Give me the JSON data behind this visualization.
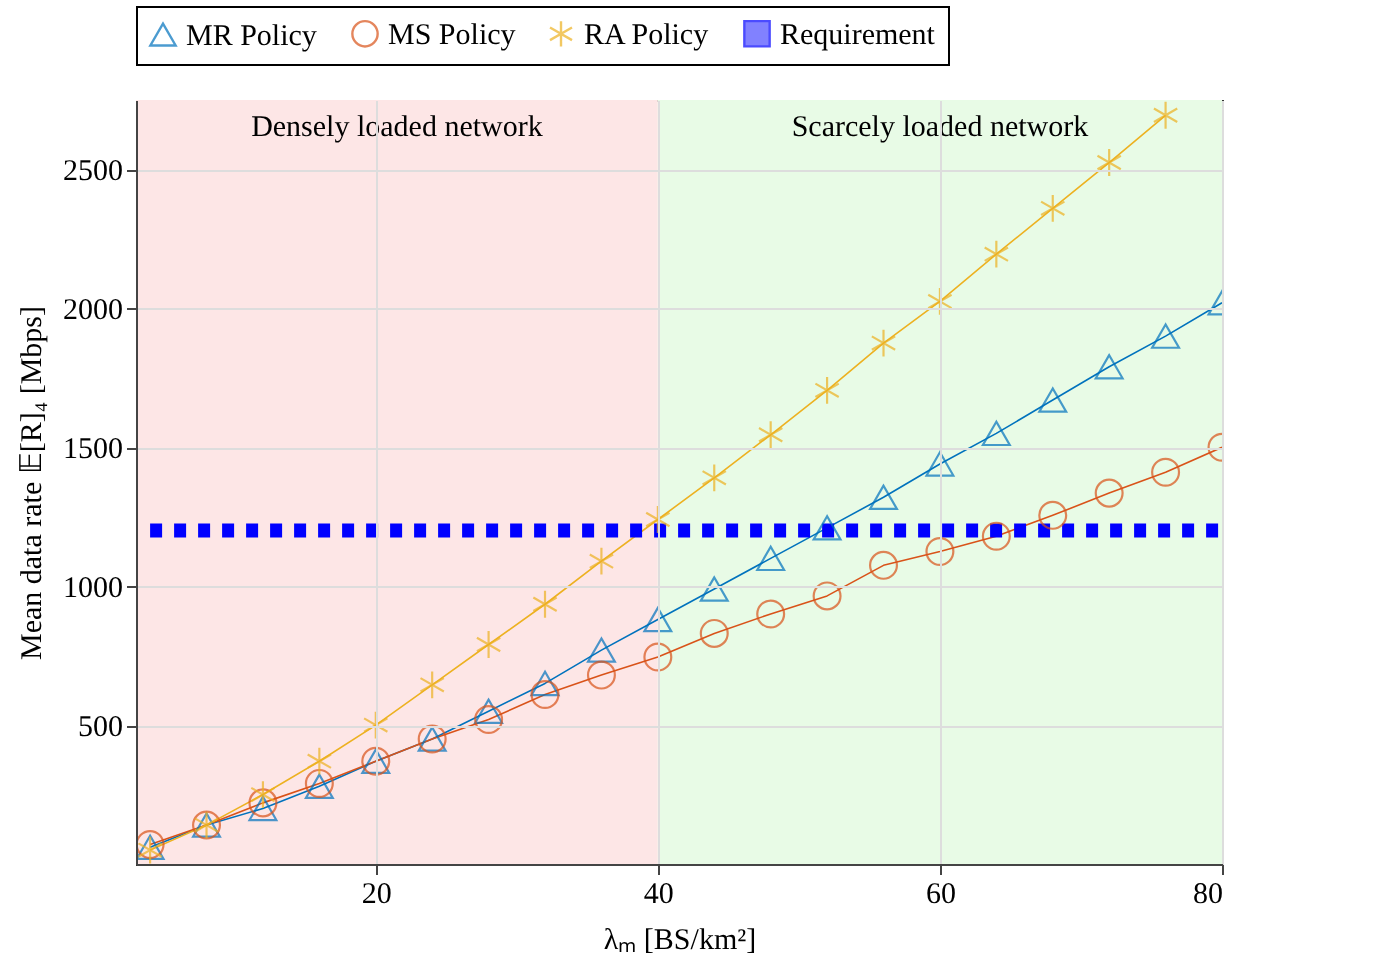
{
  "chart_data": {
    "type": "line",
    "xlabel": "λₘ [BS/km²]",
    "ylabel": "Mean data rate 𝔼[R]₄ [Mbps]",
    "x": [
      4,
      8,
      12,
      16,
      20,
      24,
      28,
      32,
      36,
      40,
      44,
      48,
      52,
      56,
      60,
      64,
      68,
      72,
      76,
      80
    ],
    "series": [
      {
        "name": "MR Policy",
        "color": "#0072bd",
        "marker": "triangle",
        "values": [
          60,
          140,
          200,
          280,
          370,
          450,
          550,
          650,
          770,
          880,
          990,
          1100,
          1210,
          1320,
          1440,
          1550,
          1670,
          1790,
          1900,
          2020
        ]
      },
      {
        "name": "MS Policy",
        "color": "#d95319",
        "marker": "circle",
        "values": [
          70,
          140,
          220,
          290,
          370,
          450,
          520,
          610,
          680,
          745,
          830,
          900,
          965,
          1075,
          1125,
          1180,
          1255,
          1335,
          1410,
          1500
        ]
      },
      {
        "name": "RA Policy",
        "color": "#edb120",
        "marker": "cross",
        "values": [
          50,
          140,
          250,
          370,
          500,
          645,
          790,
          935,
          1090,
          1240,
          1390,
          1545,
          1705,
          1875,
          2025,
          2195,
          2360,
          2525,
          2695,
          null
        ]
      },
      {
        "name": "Requirement",
        "color": "#0000ff",
        "line_style": "dotted",
        "marker": "none",
        "x": [
          4,
          80
        ],
        "values": [
          1200,
          1200
        ]
      }
    ],
    "bands": [
      {
        "axis": "x",
        "from": 3,
        "to": 40,
        "label": "Densely loaded network",
        "color": "#fde6e6"
      },
      {
        "axis": "x",
        "from": 40,
        "to": 80,
        "label": "Scarcely loaded network",
        "color": "#e8fbe6"
      }
    ],
    "xlim": [
      3,
      80
    ],
    "xticks": [
      20,
      40,
      60,
      80
    ],
    "ylim": [
      0,
      2750
    ],
    "yticks": [
      500,
      1000,
      1500,
      2000,
      2500
    ],
    "grid": true,
    "legend": "top"
  }
}
